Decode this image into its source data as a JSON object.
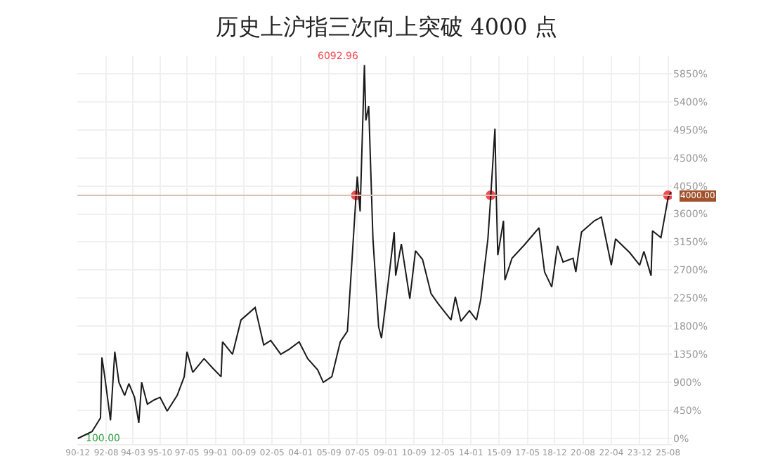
{
  "chart_data": {
    "type": "line",
    "title": "历史上沪指三次向上突破 4000 点",
    "x": [
      "1990-12",
      "1991-10",
      "1992-04",
      "1992-05",
      "1992-07",
      "1992-11",
      "1993-02",
      "1993-05",
      "1993-09",
      "1993-12",
      "1994-04",
      "1994-07",
      "1994-09",
      "1995-01",
      "1995-06",
      "1995-10",
      "1996-03",
      "1996-10",
      "1997-03",
      "1997-05",
      "1997-09",
      "1998-05",
      "1998-11",
      "1999-05",
      "1999-06",
      "2000-01",
      "2000-07",
      "2001-05",
      "2001-11",
      "2002-04",
      "2002-11",
      "2003-05",
      "2003-12",
      "2004-06",
      "2005-01",
      "2005-05",
      "2005-11",
      "2006-05",
      "2006-10",
      "2007-01",
      "2007-04",
      "2007-05",
      "2007-07",
      "2007-10",
      "2007-11",
      "2008-01",
      "2008-04",
      "2008-08",
      "2008-10",
      "2009-03",
      "2009-07",
      "2009-08",
      "2009-12",
      "2010-06",
      "2010-10",
      "2011-03",
      "2011-09",
      "2012-02",
      "2012-11",
      "2013-02",
      "2013-06",
      "2013-12",
      "2014-05",
      "2014-08",
      "2015-01",
      "2015-03",
      "2015-06",
      "2015-07",
      "2015-08",
      "2015-12",
      "2016-01",
      "2016-06",
      "2017-03",
      "2018-01",
      "2018-05",
      "2018-10",
      "2019-02",
      "2019-06",
      "2020-01",
      "2020-03",
      "2020-07",
      "2021-04",
      "2021-09",
      "2022-04",
      "2022-07",
      "2023-05",
      "2023-12",
      "2024-03",
      "2024-08",
      "2024-09",
      "2025-03",
      "2025-08",
      "2025-10"
    ],
    "series": [
      {
        "color": "#1a1a1a",
        "values": [
          0,
          110,
          330,
          1300,
          990,
          290,
          1390,
          900,
          690,
          880,
          660,
          250,
          900,
          550,
          620,
          660,
          440,
          690,
          990,
          1390,
          1060,
          1280,
          1130,
          990,
          1550,
          1350,
          1900,
          2100,
          1500,
          1570,
          1350,
          1430,
          1550,
          1280,
          1100,
          900,
          990,
          1550,
          1720,
          2780,
          3860,
          4200,
          3640,
          5990,
          5100,
          5330,
          3200,
          1790,
          1610,
          2540,
          3310,
          2610,
          3120,
          2240,
          3010,
          2870,
          2320,
          2160,
          1900,
          2270,
          1880,
          2050,
          1900,
          2230,
          3200,
          3860,
          4970,
          3860,
          2940,
          3490,
          2540,
          2890,
          3110,
          3380,
          2670,
          2430,
          3090,
          2830,
          2890,
          2670,
          3310,
          3490,
          3550,
          2780,
          3200,
          2980,
          2780,
          3000,
          2610,
          3330,
          3220,
          3860,
          3950
        ]
      },
      {
        "type": "scatter",
        "color": "#f5484f",
        "marker": "circle",
        "x": [
          "2007-04",
          "2015-03",
          "2025-08"
        ],
        "values": [
          3900,
          3900,
          3900
        ]
      }
    ],
    "xlim": [
      "1990-11-20",
      "2025-10-20"
    ],
    "xticks": [
      {
        "value": "1990-12",
        "label": "90-12"
      },
      {
        "value": "1992-08",
        "label": "92-08"
      },
      {
        "value": "1994-03",
        "label": "94-03"
      },
      {
        "value": "1995-10",
        "label": "95-10"
      },
      {
        "value": "1997-05",
        "label": "97-05"
      },
      {
        "value": "1999-01",
        "label": "99-01"
      },
      {
        "value": "2000-09",
        "label": "00-09"
      },
      {
        "value": "2002-05",
        "label": "02-05"
      },
      {
        "value": "2004-01",
        "label": "04-01"
      },
      {
        "value": "2005-09",
        "label": "05-09"
      },
      {
        "value": "2007-05",
        "label": "07-05"
      },
      {
        "value": "2009-01",
        "label": "09-01"
      },
      {
        "value": "2010-09",
        "label": "10-09"
      },
      {
        "value": "2012-05",
        "label": "12-05"
      },
      {
        "value": "2014-01",
        "label": "14-01"
      },
      {
        "value": "2015-09",
        "label": "15-09"
      },
      {
        "value": "2017-05",
        "label": "17-05"
      },
      {
        "value": "2018-12",
        "label": "18-12"
      },
      {
        "value": "2020-08",
        "label": "20-08"
      },
      {
        "value": "2022-04",
        "label": "22-04"
      },
      {
        "value": "2023-12",
        "label": "23-12"
      },
      {
        "value": "2025-08",
        "label": "25-08"
      }
    ],
    "ylim": [
      -90,
      6130
    ],
    "yticks": [
      {
        "value": 0,
        "label": "0%"
      },
      {
        "value": 450,
        "label": "450%"
      },
      {
        "value": 900,
        "label": "900%"
      },
      {
        "value": 1350,
        "label": "1350%"
      },
      {
        "value": 1800,
        "label": "1800%"
      },
      {
        "value": 2250,
        "label": "2250%"
      },
      {
        "value": 2700,
        "label": "2700%"
      },
      {
        "value": 3150,
        "label": "3150%"
      },
      {
        "value": 3600,
        "label": "3600%"
      },
      {
        "value": 4050,
        "label": "4050%"
      },
      {
        "value": 4500,
        "label": "4500%"
      },
      {
        "value": 4950,
        "label": "4950%"
      },
      {
        "value": 5400,
        "label": "5400%"
      },
      {
        "value": 5850,
        "label": "5850%"
      }
    ],
    "ref_lines": [
      {
        "axis": "y",
        "value": 3900,
        "color": "#d9c2b4"
      }
    ],
    "annotations": [
      {
        "text": "6092.96",
        "x": "2007-10",
        "y": 5990
      },
      {
        "text": "100.00",
        "x": "1990-12",
        "y": 0
      },
      {
        "text": "4000.00",
        "x": "2025-08",
        "y": 3900
      }
    ],
    "grid": true,
    "marker": "none",
    "line_style": "solid"
  }
}
